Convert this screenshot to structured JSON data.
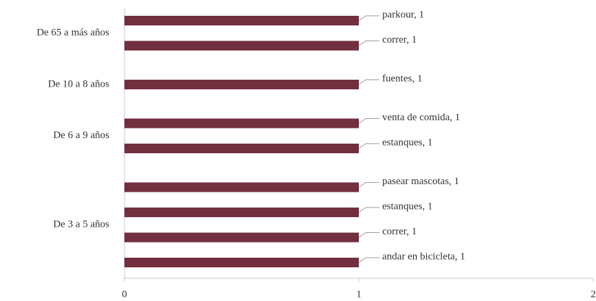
{
  "chart_data": {
    "type": "hbar-grouped",
    "color": "#722f3f",
    "groups": [
      {
        "name": "De 65 a más años",
        "values": [
          1,
          1
        ],
        "value_labels": [
          "parkour, 1",
          "correr, 1"
        ]
      },
      {
        "name": "De 10 a 8 años",
        "values": [
          1
        ],
        "value_labels": [
          "fuentes, 1"
        ]
      },
      {
        "name": "De 6 a 9 años",
        "values": [
          1,
          1
        ],
        "value_labels": [
          "venta de comida, 1",
          "estanques, 1"
        ]
      },
      {
        "name": "De 3 a 5 años",
        "values": [
          1,
          1,
          1,
          1
        ],
        "value_labels": [
          "pasear mascotas, 1",
          "estanques, 1",
          "correr, 1",
          "andar en bicicleta, 1"
        ]
      }
    ],
    "xlim": [
      0,
      2
    ],
    "xticks": [
      0,
      1,
      2
    ]
  }
}
